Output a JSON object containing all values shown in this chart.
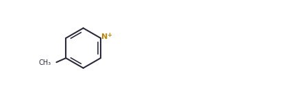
{
  "bg_color": "#ffffff",
  "bond_color": "#2a2a3a",
  "n_color": "#b8860b",
  "o_color": "#2a2a3a",
  "lw": 1.5,
  "lw2": 1.0
}
